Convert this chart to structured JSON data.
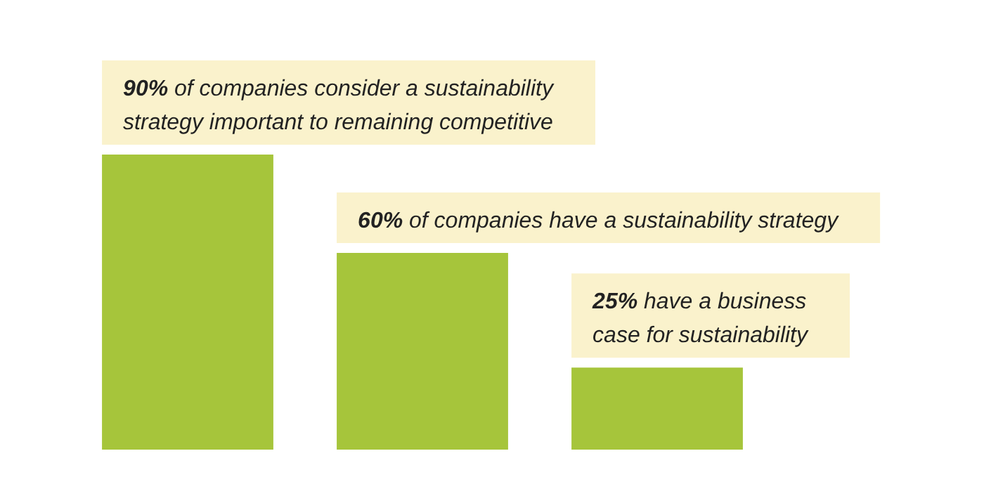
{
  "chart_data": {
    "type": "bar",
    "categories": [
      null,
      null,
      null
    ],
    "values": [
      90,
      60,
      25
    ],
    "value_labels": [
      "90%",
      "60%",
      "25%"
    ],
    "annotations": [
      "of companies consider a sustainability strategy important to remaining competitive",
      "of companies have a sustainability strategy",
      "have a business case for sustainability"
    ],
    "color": "#a6c53b"
  }
}
